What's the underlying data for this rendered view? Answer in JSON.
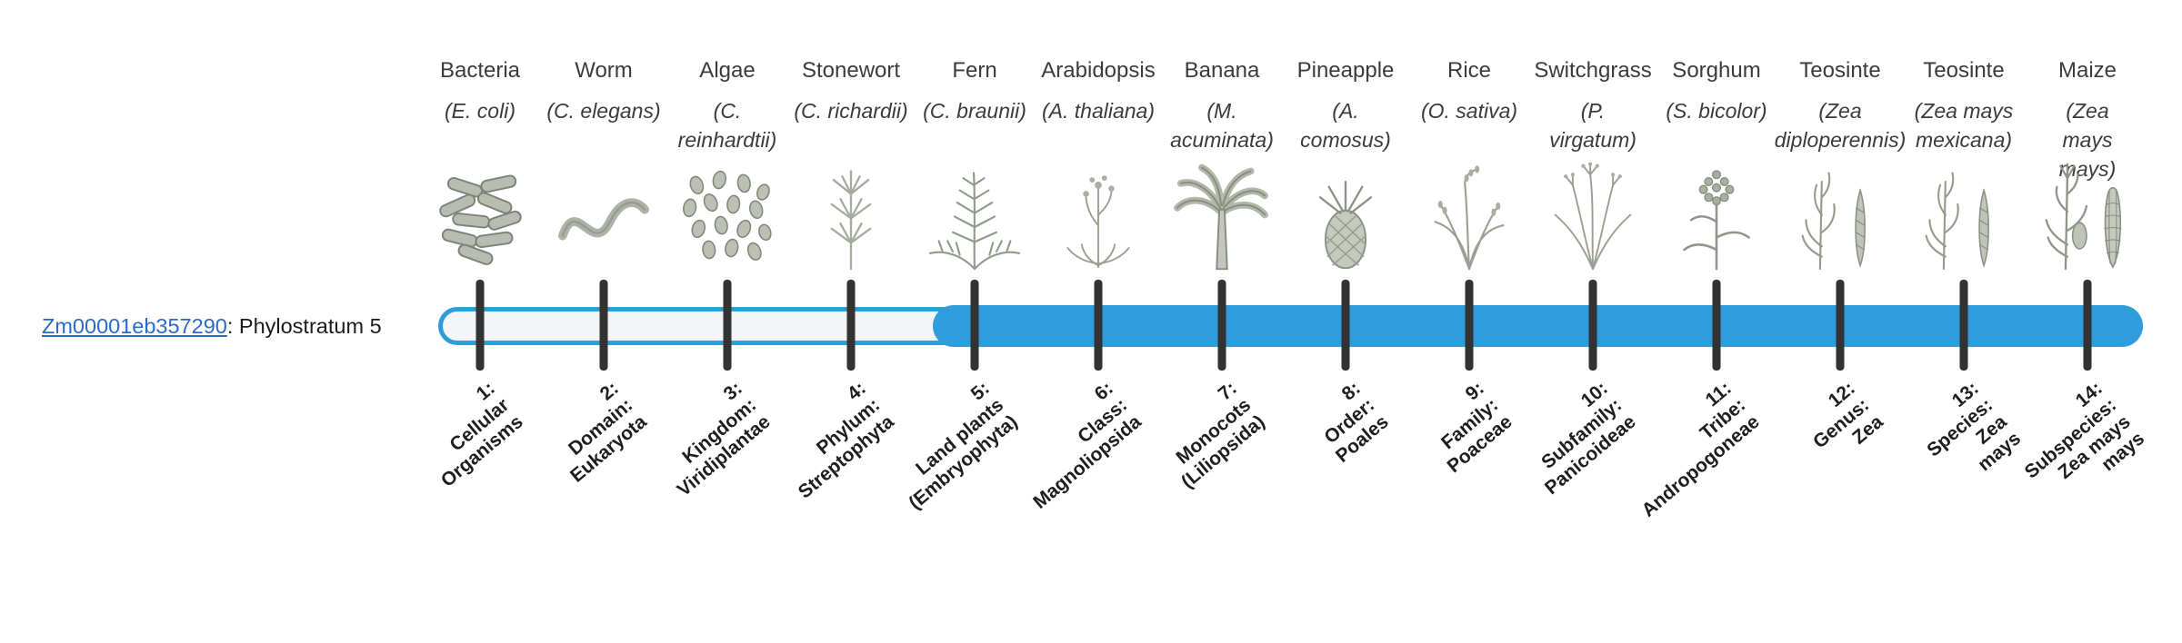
{
  "diagram": {
    "type": "phylostratigraphy-timeline",
    "filled_from_stratum": 5,
    "filled_to_stratum": 14
  },
  "gene": {
    "id": "Zm00001eb357290",
    "suffix": ": Phylostratum 5",
    "phylostratum": 5
  },
  "colors": {
    "bar_fill": "#2F9CDC",
    "bar_track_fill": "#F2F6F8",
    "tick": "#323232",
    "link": "#2B6BC7",
    "text_primary": "#3B3B3B",
    "label_bold": "#1E1E1E"
  },
  "strata": [
    {
      "num": 1,
      "organism": "Bacteria",
      "species": "(E. coli)",
      "icon": "bacteria-icon",
      "label": "1:\nCellular\nOrganisms"
    },
    {
      "num": 2,
      "organism": "Worm",
      "species": "(C. elegans)",
      "icon": "worm-icon",
      "label": "2:\nDomain:\nEukaryota"
    },
    {
      "num": 3,
      "organism": "Algae",
      "species": "(C.\nreinhardtii)",
      "icon": "algae-icon",
      "label": "3:\nKingdom:\nViridiplantae"
    },
    {
      "num": 4,
      "organism": "Stonewort",
      "species": "(C. richardii)",
      "icon": "stonewort-icon",
      "label": "4:\nPhylum:\nStreptophyta"
    },
    {
      "num": 5,
      "organism": "Fern",
      "species": "(C. braunii)",
      "icon": "fern-icon",
      "label": "5:\nLand plants\n(Embryophyta)"
    },
    {
      "num": 6,
      "organism": "Arabidopsis",
      "species": "(A. thaliana)",
      "icon": "arabidopsis-icon",
      "label": "6:\nClass:\nMagnoliopsida"
    },
    {
      "num": 7,
      "organism": "Banana",
      "species": "(M.\nacuminata)",
      "icon": "banana-icon",
      "label": "7:\nMonocots\n(Liliopsida)"
    },
    {
      "num": 8,
      "organism": "Pineapple",
      "species": "(A.\ncomosus)",
      "icon": "pineapple-icon",
      "label": "8:\nOrder:\nPoales"
    },
    {
      "num": 9,
      "organism": "Rice",
      "species": "(O. sativa)",
      "icon": "rice-icon",
      "label": "9:\nFamily:\nPoaceae"
    },
    {
      "num": 10,
      "organism": "Switchgrass",
      "species": "(P.\nvirgatum)",
      "icon": "switchgrass-icon",
      "label": "10:\nSubfamily:\nPanicoideae"
    },
    {
      "num": 11,
      "organism": "Sorghum",
      "species": "(S. bicolor)",
      "icon": "sorghum-icon",
      "label": "11:\nTribe:\nAndropogoneae"
    },
    {
      "num": 12,
      "organism": "Teosinte",
      "species": "(Zea\ndiploperennis)",
      "icon": "teosinte-icon",
      "label": "12:\nGenus:\nZea"
    },
    {
      "num": 13,
      "organism": "Teosinte",
      "species": "(Zea mays\nmexicana)",
      "icon": "teosinte-icon",
      "label": "13:\nSpecies:\nZea\nmays"
    },
    {
      "num": 14,
      "organism": "Maize",
      "species": "(Zea mays\nmays)",
      "icon": "maize-icon",
      "label": "14:\nSubspecies:\nZea mays\nmays"
    }
  ]
}
